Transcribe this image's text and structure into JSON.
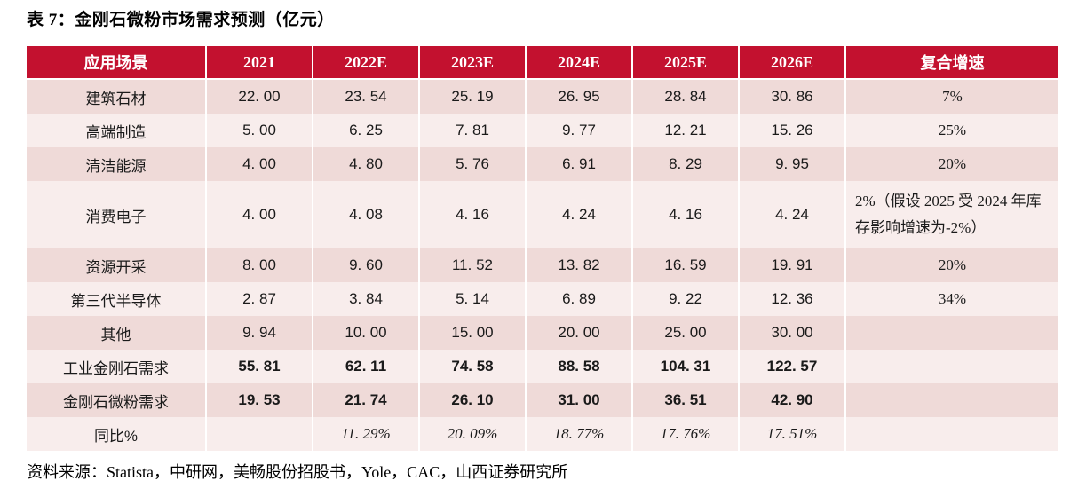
{
  "title": "表 7：金刚石微粉市场需求预测（亿元）",
  "source": "资料来源：Statista，中研网，美畅股份招股书，Yole，CAC，山西证券研究所",
  "colors": {
    "header_bg": "#C3112F",
    "row_dark": "#EFDAD8",
    "row_light": "#F8EDEC",
    "grid_line": "#FFFFFF",
    "header_text": "#FFFFFF",
    "body_text": "#1A1A1A"
  },
  "table": {
    "headers": [
      "应用场景",
      "2021",
      "2022E",
      "2023E",
      "2024E",
      "2025E",
      "2026E",
      "复合增速"
    ],
    "rows": [
      {
        "label": "建筑石材",
        "values": [
          "22. 00",
          "23. 54",
          "25. 19",
          "26. 95",
          "28. 84",
          "30. 86"
        ],
        "cagr": "7%"
      },
      {
        "label": "高端制造",
        "values": [
          "5. 00",
          "6. 25",
          "7. 81",
          "9. 77",
          "12. 21",
          "15. 26"
        ],
        "cagr": "25%"
      },
      {
        "label": "清洁能源",
        "values": [
          "4. 00",
          "4. 80",
          "5. 76",
          "6. 91",
          "8. 29",
          "9. 95"
        ],
        "cagr": "20%"
      },
      {
        "label": "消费电子",
        "values": [
          "4. 00",
          "4. 08",
          "4. 16",
          "4. 24",
          "4. 16",
          "4. 24"
        ],
        "cagr": "2%（假设 2025 受 2024 年库存影响增速为-2%）"
      },
      {
        "label": "资源开采",
        "values": [
          "8. 00",
          "9. 60",
          "11. 52",
          "13. 82",
          "16. 59",
          "19. 91"
        ],
        "cagr": "20%"
      },
      {
        "label": "第三代半导体",
        "values": [
          "2. 87",
          "3. 84",
          "5. 14",
          "6. 89",
          "9. 22",
          "12. 36"
        ],
        "cagr": "34%"
      },
      {
        "label": "其他",
        "values": [
          "9. 94",
          "10. 00",
          "15. 00",
          "20. 00",
          "25. 00",
          "30. 00"
        ],
        "cagr": ""
      },
      {
        "label": "工业金刚石需求",
        "values": [
          "55. 81",
          "62. 11",
          "74. 58",
          "88. 58",
          "104. 31",
          "122. 57"
        ],
        "cagr": ""
      },
      {
        "label": "金刚石微粉需求",
        "values": [
          "19. 53",
          "21. 74",
          "26. 10",
          "31. 00",
          "36. 51",
          "42. 90"
        ],
        "cagr": ""
      },
      {
        "label": "同比%",
        "values": [
          "",
          "11. 29%",
          "20. 09%",
          "18. 77%",
          "17. 76%",
          "17. 51%"
        ],
        "cagr": ""
      }
    ]
  }
}
